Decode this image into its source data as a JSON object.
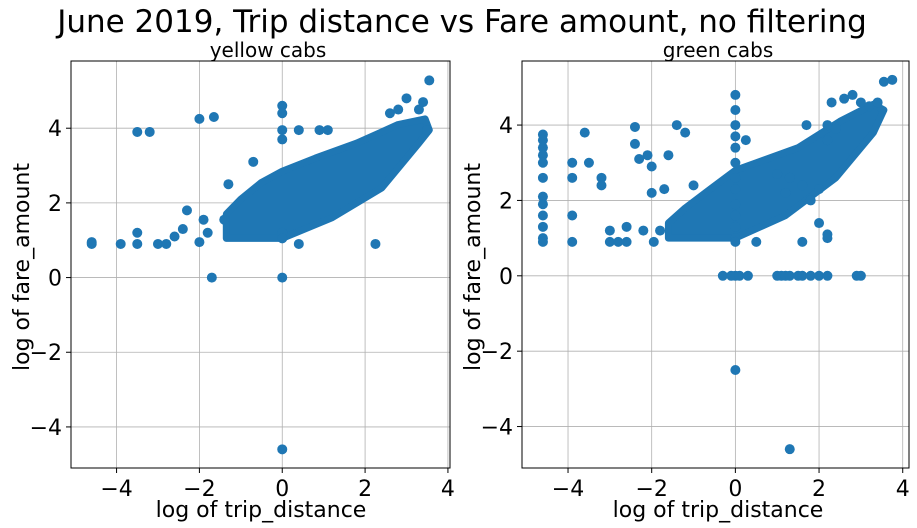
{
  "figure_title": "June 2019, Trip distance vs Fare amount, no filtering",
  "colors": {
    "marker": "#1f77b4",
    "grid": "#b0b0b0"
  },
  "chart_data": [
    {
      "type": "scatter",
      "title": "yellow cabs",
      "xlabel": "log of trip_distance",
      "ylabel": "log of fare_amount",
      "xlim": [
        -5.1,
        4.05
      ],
      "ylim": [
        -5.1,
        5.8
      ],
      "xticks": [
        -4,
        -2,
        0,
        2,
        4
      ],
      "yticks": [
        -4,
        -2,
        0,
        2,
        4
      ],
      "grid": true,
      "dense_band": [
        [
          -1.35,
          1.05
        ],
        [
          0.0,
          1.05
        ],
        [
          1.2,
          1.6
        ],
        [
          2.4,
          2.4
        ],
        [
          3.3,
          3.6
        ],
        [
          3.55,
          3.95
        ],
        [
          3.45,
          4.25
        ],
        [
          2.8,
          4.1
        ],
        [
          1.8,
          3.6
        ],
        [
          0.8,
          3.2
        ],
        [
          0.0,
          2.85
        ],
        [
          -0.5,
          2.55
        ],
        [
          -1.0,
          2.1
        ],
        [
          -1.35,
          1.7
        ]
      ],
      "points": [
        [
          -4.6,
          0.9
        ],
        [
          -4.6,
          0.95
        ],
        [
          -3.9,
          0.9
        ],
        [
          -3.5,
          3.9
        ],
        [
          -3.2,
          3.9
        ],
        [
          -3.5,
          1.2
        ],
        [
          -3.5,
          0.9
        ],
        [
          -3.0,
          0.9
        ],
        [
          -2.8,
          0.9
        ],
        [
          -2.6,
          1.1
        ],
        [
          -2.4,
          1.3
        ],
        [
          -2.3,
          1.8
        ],
        [
          -2.0,
          4.25
        ],
        [
          -2.0,
          0.95
        ],
        [
          -1.9,
          1.55
        ],
        [
          -1.65,
          4.3
        ],
        [
          -1.7,
          0.0
        ],
        [
          -1.8,
          1.2
        ],
        [
          -1.3,
          2.5
        ],
        [
          -1.4,
          1.55
        ],
        [
          -0.7,
          3.1
        ],
        [
          0.0,
          4.6
        ],
        [
          0.0,
          4.4
        ],
        [
          0.0,
          3.95
        ],
        [
          0.0,
          3.7
        ],
        [
          0.0,
          1.2
        ],
        [
          0.0,
          1.05
        ],
        [
          0.0,
          0.0
        ],
        [
          0.0,
          -4.6
        ],
        [
          0.4,
          3.95
        ],
        [
          0.9,
          3.95
        ],
        [
          1.1,
          3.95
        ],
        [
          0.4,
          0.9
        ],
        [
          2.25,
          0.9
        ],
        [
          2.6,
          4.4
        ],
        [
          2.8,
          4.5
        ],
        [
          3.0,
          4.8
        ],
        [
          3.3,
          4.5
        ],
        [
          3.4,
          4.7
        ],
        [
          3.55,
          5.28
        ],
        [
          3.5,
          3.95
        ]
      ]
    },
    {
      "type": "scatter",
      "title": "green cabs",
      "xlabel": "log of trip_distance",
      "ylabel": "log of fare_amount",
      "xlim": [
        -5.1,
        4.15
      ],
      "ylim": [
        -5.1,
        5.7
      ],
      "xticks": [
        -4,
        -2,
        0,
        2,
        4
      ],
      "yticks": [
        -4,
        -2,
        0,
        2,
        4
      ],
      "grid": true,
      "dense_band": [
        [
          -1.6,
          1.0
        ],
        [
          0.0,
          1.0
        ],
        [
          1.2,
          1.6
        ],
        [
          2.4,
          2.6
        ],
        [
          3.3,
          3.8
        ],
        [
          3.55,
          4.4
        ],
        [
          3.3,
          4.55
        ],
        [
          2.5,
          4.1
        ],
        [
          1.5,
          3.4
        ],
        [
          0.5,
          3.0
        ],
        [
          0.0,
          2.8
        ],
        [
          -0.6,
          2.3
        ],
        [
          -1.2,
          1.8
        ],
        [
          -1.6,
          1.4
        ]
      ],
      "points": [
        [
          -4.6,
          3.75
        ],
        [
          -4.6,
          3.6
        ],
        [
          -4.6,
          3.4
        ],
        [
          -4.6,
          3.2
        ],
        [
          -4.6,
          3.0
        ],
        [
          -4.6,
          2.6
        ],
        [
          -4.6,
          2.1
        ],
        [
          -4.6,
          1.9
        ],
        [
          -4.6,
          1.6
        ],
        [
          -4.6,
          1.3
        ],
        [
          -4.6,
          1.0
        ],
        [
          -4.6,
          0.9
        ],
        [
          -3.9,
          3.0
        ],
        [
          -3.9,
          2.6
        ],
        [
          -3.9,
          1.6
        ],
        [
          -3.9,
          0.9
        ],
        [
          -3.6,
          3.8
        ],
        [
          -3.5,
          3.0
        ],
        [
          -3.2,
          2.6
        ],
        [
          -3.2,
          2.4
        ],
        [
          -3.0,
          1.2
        ],
        [
          -3.0,
          0.9
        ],
        [
          -2.8,
          0.9
        ],
        [
          -2.6,
          1.3
        ],
        [
          -2.6,
          0.9
        ],
        [
          -2.4,
          3.95
        ],
        [
          -2.4,
          3.5
        ],
        [
          -2.3,
          3.1
        ],
        [
          -2.2,
          1.2
        ],
        [
          -2.1,
          3.2
        ],
        [
          -2.0,
          2.9
        ],
        [
          -2.0,
          2.2
        ],
        [
          -1.95,
          0.9
        ],
        [
          -1.8,
          1.2
        ],
        [
          -1.7,
          2.3
        ],
        [
          -1.6,
          3.2
        ],
        [
          -1.4,
          4.0
        ],
        [
          -1.2,
          3.8
        ],
        [
          -1.0,
          2.4
        ],
        [
          0.0,
          4.8
        ],
        [
          0.0,
          4.4
        ],
        [
          0.0,
          4.0
        ],
        [
          0.0,
          3.7
        ],
        [
          0.0,
          3.4
        ],
        [
          0.0,
          3.0
        ],
        [
          0.0,
          2.6
        ],
        [
          0.0,
          2.3
        ],
        [
          0.0,
          1.9
        ],
        [
          0.0,
          1.6
        ],
        [
          0.0,
          1.3
        ],
        [
          0.0,
          1.0
        ],
        [
          0.0,
          0.9
        ],
        [
          0.0,
          0.0
        ],
        [
          0.0,
          -2.5
        ],
        [
          0.25,
          3.6
        ],
        [
          0.5,
          0.9
        ],
        [
          -0.3,
          0.0
        ],
        [
          -0.1,
          0.0
        ],
        [
          0.1,
          0.0
        ],
        [
          0.3,
          0.0
        ],
        [
          1.0,
          0.0
        ],
        [
          1.1,
          0.0
        ],
        [
          1.2,
          0.0
        ],
        [
          1.3,
          0.0
        ],
        [
          1.5,
          0.0
        ],
        [
          1.6,
          0.0
        ],
        [
          1.8,
          0.0
        ],
        [
          2.0,
          0.0
        ],
        [
          2.2,
          0.0
        ],
        [
          2.9,
          0.0
        ],
        [
          3.0,
          0.0
        ],
        [
          1.3,
          -4.6
        ],
        [
          1.0,
          2.7
        ],
        [
          1.3,
          2.6
        ],
        [
          1.2,
          2.2
        ],
        [
          1.6,
          2.4
        ],
        [
          1.6,
          0.9
        ],
        [
          1.8,
          2.0
        ],
        [
          2.0,
          2.3
        ],
        [
          2.0,
          1.4
        ],
        [
          2.2,
          1.1
        ],
        [
          2.2,
          1.0
        ],
        [
          1.7,
          4.0
        ],
        [
          2.2,
          4.0
        ],
        [
          2.2,
          3.6
        ],
        [
          2.3,
          4.6
        ],
        [
          2.4,
          3.9
        ],
        [
          2.6,
          4.7
        ],
        [
          2.8,
          4.8
        ],
        [
          3.0,
          4.6
        ],
        [
          3.2,
          4.5
        ],
        [
          3.4,
          4.6
        ],
        [
          3.55,
          5.15
        ],
        [
          3.75,
          5.2
        ]
      ]
    }
  ]
}
